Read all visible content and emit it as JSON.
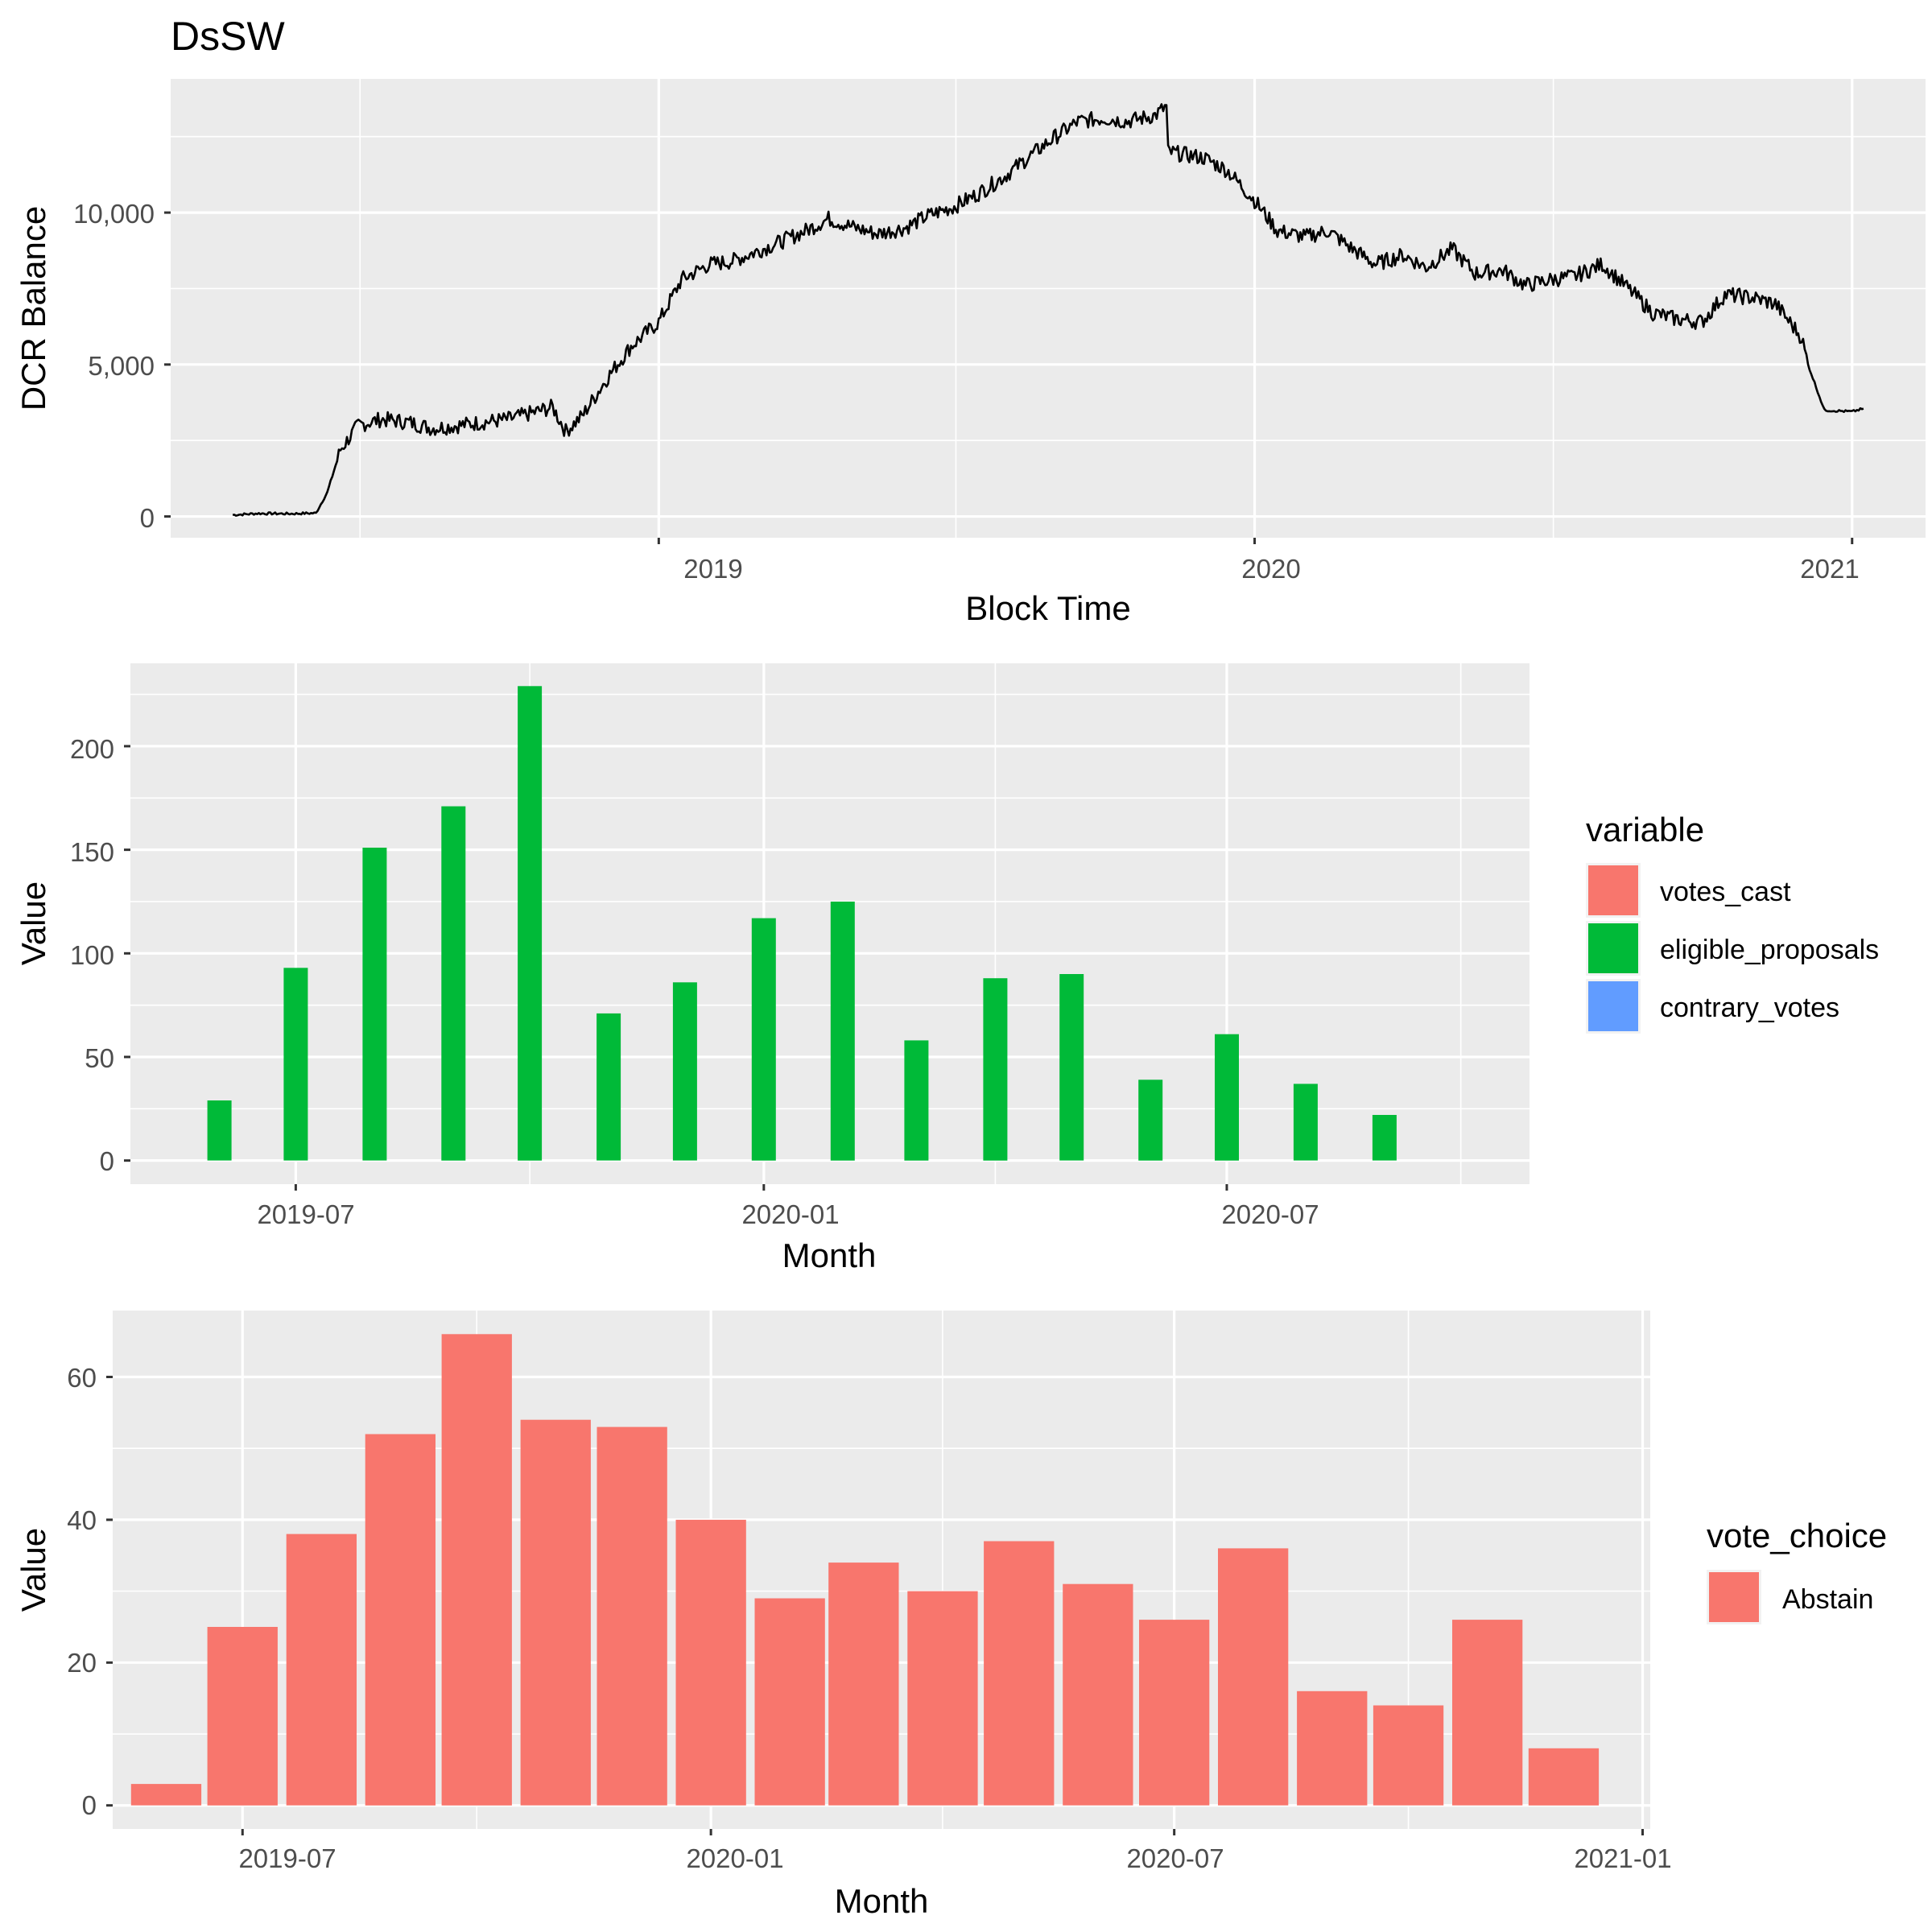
{
  "chart_data": [
    {
      "type": "line",
      "title": "DsSW",
      "xlabel": "Block Time",
      "ylabel": "DCR Balance",
      "x_ticks": [
        "2019",
        "2020",
        "2021"
      ],
      "y_ticks": [
        "0",
        "5,000",
        "10,000"
      ],
      "xlim": [
        "2018-03-08",
        "2021-02-15"
      ],
      "ylim": [
        -700,
        14400
      ],
      "grid": true,
      "color": "#000000",
      "series": [
        {
          "x": [
            "2018-04-15",
            "2018-05-01",
            "2018-05-20",
            "2018-06-05",
            "2018-06-12",
            "2018-06-20",
            "2018-07-01",
            "2018-07-15",
            "2018-08-01",
            "2018-08-15",
            "2018-09-01",
            "2018-09-15",
            "2018-10-01",
            "2018-10-15",
            "2018-10-28",
            "2018-11-05",
            "2018-11-15",
            "2018-12-01",
            "2018-12-15",
            "2019-01-01",
            "2019-01-15",
            "2019-02-01",
            "2019-02-15",
            "2019-03-01",
            "2019-03-15",
            "2019-04-01",
            "2019-04-15",
            "2019-05-01",
            "2019-05-15",
            "2019-06-01",
            "2019-06-15",
            "2019-07-01",
            "2019-07-15",
            "2019-08-01",
            "2019-08-15",
            "2019-09-01",
            "2019-09-15",
            "2019-10-01",
            "2019-10-15",
            "2019-11-01",
            "2019-11-08",
            "2019-11-09",
            "2019-11-20",
            "2019-12-01",
            "2019-12-15",
            "2020-01-01",
            "2020-01-15",
            "2020-02-01",
            "2020-02-15",
            "2020-03-01",
            "2020-03-15",
            "2020-04-01",
            "2020-04-15",
            "2020-05-01",
            "2020-05-15",
            "2020-06-01",
            "2020-06-15",
            "2020-07-01",
            "2020-07-15",
            "2020-08-01",
            "2020-08-15",
            "2020-09-01",
            "2020-09-15",
            "2020-10-01",
            "2020-10-15",
            "2020-11-01",
            "2020-11-15",
            "2020-12-01",
            "2020-12-05",
            "2020-12-15",
            "2021-01-01",
            "2021-01-08"
          ],
          "y": [
            50,
            100,
            90,
            110,
            800,
            2200,
            3000,
            3200,
            3100,
            2900,
            3000,
            3100,
            3200,
            3400,
            3600,
            2800,
            3300,
            4600,
            5600,
            6400,
            7800,
            8300,
            8400,
            8700,
            9000,
            9400,
            9800,
            9500,
            9300,
            9500,
            9900,
            10200,
            10600,
            11200,
            11800,
            12500,
            13000,
            13100,
            13000,
            13200,
            13500,
            12000,
            11900,
            11800,
            11400,
            10400,
            9400,
            9200,
            9400,
            8800,
            8300,
            8600,
            8200,
            8800,
            8000,
            8100,
            7600,
            7800,
            7900,
            8300,
            7600,
            6700,
            6500,
            6400,
            7300,
            7200,
            7000,
            5900,
            5000,
            3500,
            3450,
            3550
          ]
        }
      ]
    },
    {
      "type": "bar",
      "xlabel": "Month",
      "ylabel": "Value",
      "x_ticks": [
        "2019-07",
        "2020-01",
        "2020-07"
      ],
      "y_ticks": [
        "0",
        "50",
        "100",
        "150",
        "200"
      ],
      "xlim": [
        "2019-04-27",
        "2020-10-28"
      ],
      "ylim": [
        -11.4,
        240
      ],
      "grid": true,
      "legend_title": "variable",
      "legend_position": "right",
      "categories": [
        "2019-06",
        "2019-07",
        "2019-08",
        "2019-09",
        "2019-10",
        "2019-11",
        "2019-12",
        "2020-01",
        "2020-02",
        "2020-03",
        "2020-04",
        "2020-05",
        "2020-06",
        "2020-07",
        "2020-08",
        "2020-09"
      ],
      "series": [
        {
          "name": "votes_cast",
          "color": "#F8766D",
          "values": [
            0,
            0,
            0,
            0,
            0,
            0,
            0,
            0,
            0,
            0,
            0,
            0,
            0,
            0,
            0,
            0
          ]
        },
        {
          "name": "eligible_proposals",
          "color": "#00BA38",
          "values": [
            29,
            93,
            151,
            171,
            229,
            71,
            86,
            117,
            125,
            58,
            88,
            90,
            39,
            61,
            37,
            22
          ]
        },
        {
          "name": "contrary_votes",
          "color": "#619CFF",
          "values": [
            0,
            0,
            0,
            0,
            0,
            0,
            0,
            0,
            0,
            0,
            0,
            0,
            0,
            0,
            0,
            0
          ]
        }
      ]
    },
    {
      "type": "bar",
      "xlabel": "Month",
      "ylabel": "Value",
      "x_ticks": [
        "2019-07",
        "2020-01",
        "2020-07",
        "2021-01"
      ],
      "y_ticks": [
        "0",
        "20",
        "40",
        "60"
      ],
      "xlim": [
        "2019-05-11",
        "2021-01-04"
      ],
      "ylim": [
        -3.3,
        69.3
      ],
      "grid": true,
      "legend_title": "vote_choice",
      "legend_position": "right",
      "categories": [
        "2019-06",
        "2019-07",
        "2019-08",
        "2019-09",
        "2019-10",
        "2019-11",
        "2019-12",
        "2020-01",
        "2020-02",
        "2020-03",
        "2020-04",
        "2020-05",
        "2020-06",
        "2020-07",
        "2020-08",
        "2020-09",
        "2020-10",
        "2020-11",
        "2020-12"
      ],
      "series": [
        {
          "name": "Abstain",
          "color": "#F8766D",
          "values": [
            3,
            25,
            38,
            52,
            66,
            54,
            53,
            40,
            29,
            34,
            30,
            37,
            31,
            26,
            36,
            16,
            14,
            26,
            8
          ]
        }
      ]
    }
  ]
}
